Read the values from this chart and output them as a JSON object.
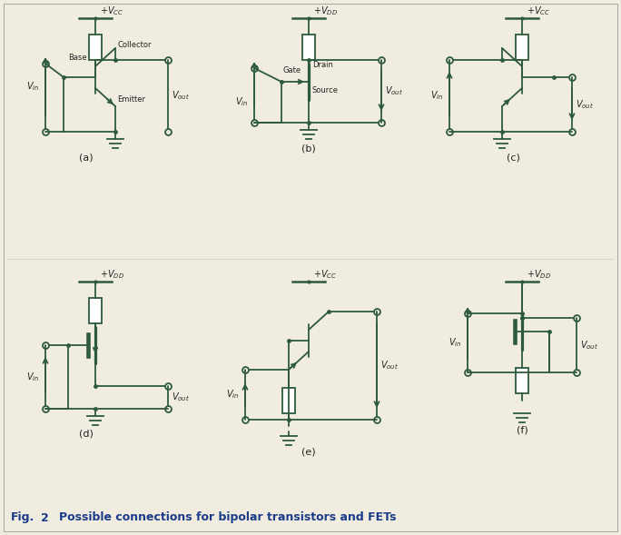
{
  "bg_color": "#f0ede0",
  "line_color": "#2d5a3d",
  "text_color": "#222222",
  "caption_color": "#1a3a8a",
  "lw": 1.3,
  "panels": [
    "(a)",
    "(b)",
    "(c)",
    "(d)",
    "(e)",
    "(f)"
  ],
  "supply_labels": [
    "+V_{CC}",
    "+V_{DD}",
    "+V_{CC}",
    "+V_{DD}",
    "+V_{CC}",
    "+V_{DD}"
  ]
}
